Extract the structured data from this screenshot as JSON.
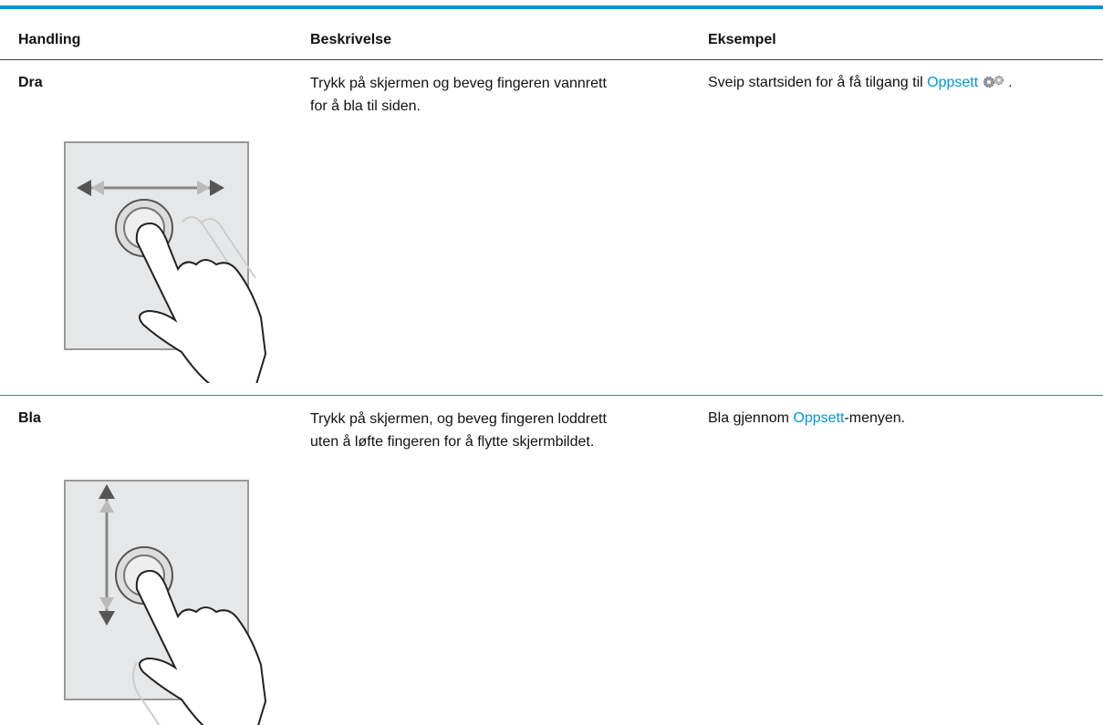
{
  "header": {
    "columns": [
      "Handling",
      "Beskrivelse",
      "Eksempel"
    ]
  },
  "rows": [
    {
      "action": "Dra",
      "description": [
        "Trykk på skjermen og beveg fingeren vannrett",
        "for å bla til siden."
      ],
      "example": {
        "before": "Sveip startsiden for å få tilgang til ",
        "link": "Oppsett",
        "after": "."
      }
    },
    {
      "action": "Bla",
      "description": [
        "Trykk på skjermen, og beveg fingeren loddrett",
        "uten å løfte fingeren for å flytte skjermbildet."
      ],
      "example": {
        "before": "Bla gjennom ",
        "link": "Oppsett",
        "after": "-menyen."
      }
    }
  ]
}
